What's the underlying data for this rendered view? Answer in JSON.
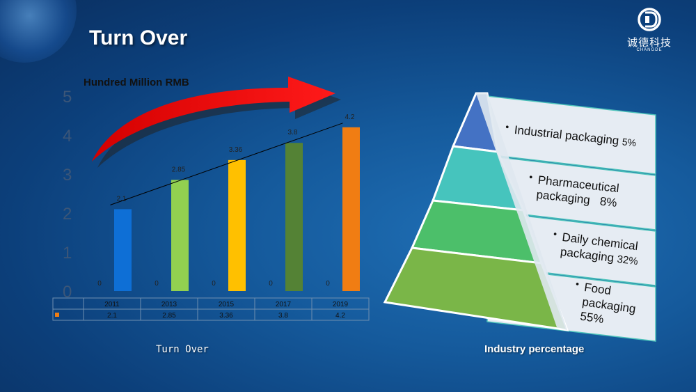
{
  "header": {
    "title": "Turn Over",
    "logo_cn": "诚德科技",
    "logo_en": "CHANGDE"
  },
  "chart_data": {
    "type": "bar",
    "unit_label": "Hundred Million RMB",
    "categories": [
      "2011",
      "2013",
      "2015",
      "2017",
      "2019"
    ],
    "series": [
      {
        "values": [
          0,
          0,
          0,
          0,
          0
        ],
        "labels": [
          "0",
          "0",
          "0",
          "0",
          "0"
        ]
      },
      {
        "values": [
          2.1,
          2.85,
          3.36,
          3.8,
          4.2
        ],
        "labels": [
          "2.1",
          "2.85",
          "3.36",
          "3.8",
          "4.2"
        ]
      }
    ],
    "bar_colors": [
      "#0e6fd6",
      "#92d050",
      "#ffc000",
      "#548235",
      "#f07d13"
    ],
    "ylim": [
      0,
      5
    ],
    "yticks": [
      "0",
      "1",
      "2",
      "3",
      "4",
      "5"
    ],
    "trendline": true,
    "caption": "Turn Over"
  },
  "pyramid": {
    "caption": "Industry percentage",
    "layers": [
      {
        "line1": "Industrial packaging",
        "line2": "",
        "pct": "5%",
        "color": "#4472c4"
      },
      {
        "line1": "Pharmaceutical",
        "line2": "packaging",
        "pct": "8%",
        "color": "#46c4bd"
      },
      {
        "line1": "Daily chemical",
        "line2": "packaging",
        "pct": "32%",
        "color": "#4cbf6a"
      },
      {
        "line1": "Food",
        "line2": "packaging",
        "pct": "55%",
        "color": "#7ab648"
      }
    ]
  }
}
